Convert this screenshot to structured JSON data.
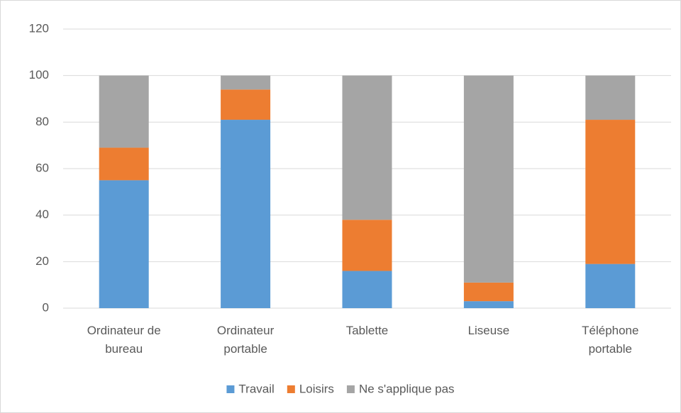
{
  "chart_data": {
    "type": "stacked_bar",
    "categories": [
      "Ordinateur de bureau",
      "Ordinateur portable",
      "Tablette",
      "Liseuse",
      "Téléphone portable"
    ],
    "series": [
      {
        "name": "Travail",
        "color": "#5b9bd5",
        "values": [
          55,
          81,
          16,
          3,
          19
        ]
      },
      {
        "name": "Loisirs",
        "color": "#ed7d31",
        "values": [
          14,
          13,
          22,
          8,
          62
        ]
      },
      {
        "name": "Ne s'applique pas",
        "color": "#a5a5a5",
        "values": [
          31,
          6,
          62,
          89,
          19
        ]
      }
    ],
    "ylim": [
      0,
      120
    ],
    "yticks": [
      0,
      20,
      40,
      60,
      80,
      100,
      120
    ],
    "grid": true,
    "legend": "bottom"
  }
}
